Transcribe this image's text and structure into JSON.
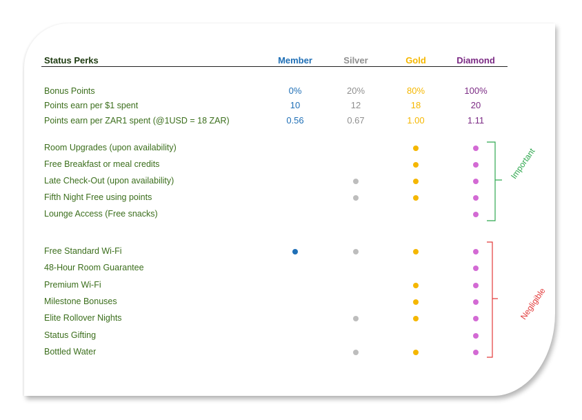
{
  "header": {
    "perks_label": "Status Perks",
    "tiers": [
      "Member",
      "Silver",
      "Gold",
      "Diamond"
    ]
  },
  "colors": {
    "member": "#1f6fb6",
    "silver": "#8f8f8f",
    "gold": "#f5b700",
    "diamond": "#7b2a84",
    "diamond_dot": "#d36ad4",
    "label": "#3b6e1c",
    "important": "#2fa84f",
    "negligible": "#e23a3a"
  },
  "numeric_rows": [
    {
      "label": "Bonus Points",
      "values": [
        "0%",
        "20%",
        "80%",
        "100%"
      ]
    },
    {
      "label": "Points earn per $1 spent",
      "values": [
        "10",
        "12",
        "18",
        "20"
      ]
    },
    {
      "label": "Points earn per ZAR1 spent (@1USD = 18 ZAR)",
      "values": [
        "0.56",
        "0.67",
        "1.00",
        "1.11"
      ]
    }
  ],
  "important_perks": [
    {
      "label": "Room Upgrades (upon availability)",
      "member": false,
      "silver": false,
      "gold": true,
      "diamond": true
    },
    {
      "label": "Free Breakfast or meal credits",
      "member": false,
      "silver": false,
      "gold": true,
      "diamond": true
    },
    {
      "label": "Late Check-Out (upon availability)",
      "member": false,
      "silver": true,
      "gold": true,
      "diamond": true
    },
    {
      "label": "Fifth Night Free using points",
      "member": false,
      "silver": true,
      "gold": true,
      "diamond": true
    },
    {
      "label": "Lounge Access (Free snacks)",
      "member": false,
      "silver": false,
      "gold": false,
      "diamond": true
    }
  ],
  "negligible_perks": [
    {
      "label": "Free Standard Wi-Fi",
      "member": true,
      "silver": true,
      "gold": true,
      "diamond": true
    },
    {
      "label": "48-Hour Room Guarantee",
      "member": false,
      "silver": false,
      "gold": false,
      "diamond": true
    },
    {
      "label": "Premium Wi-Fi",
      "member": false,
      "silver": false,
      "gold": true,
      "diamond": true
    },
    {
      "label": "Milestone Bonuses",
      "member": false,
      "silver": false,
      "gold": true,
      "diamond": true
    },
    {
      "label": "Elite Rollover Nights",
      "member": false,
      "silver": true,
      "gold": true,
      "diamond": true
    },
    {
      "label": "Status Gifting",
      "member": false,
      "silver": false,
      "gold": false,
      "diamond": true
    },
    {
      "label": "Bottled Water",
      "member": false,
      "silver": true,
      "gold": true,
      "diamond": true
    }
  ],
  "groups": {
    "important_label": "Important",
    "negligible_label": "Negligible"
  }
}
